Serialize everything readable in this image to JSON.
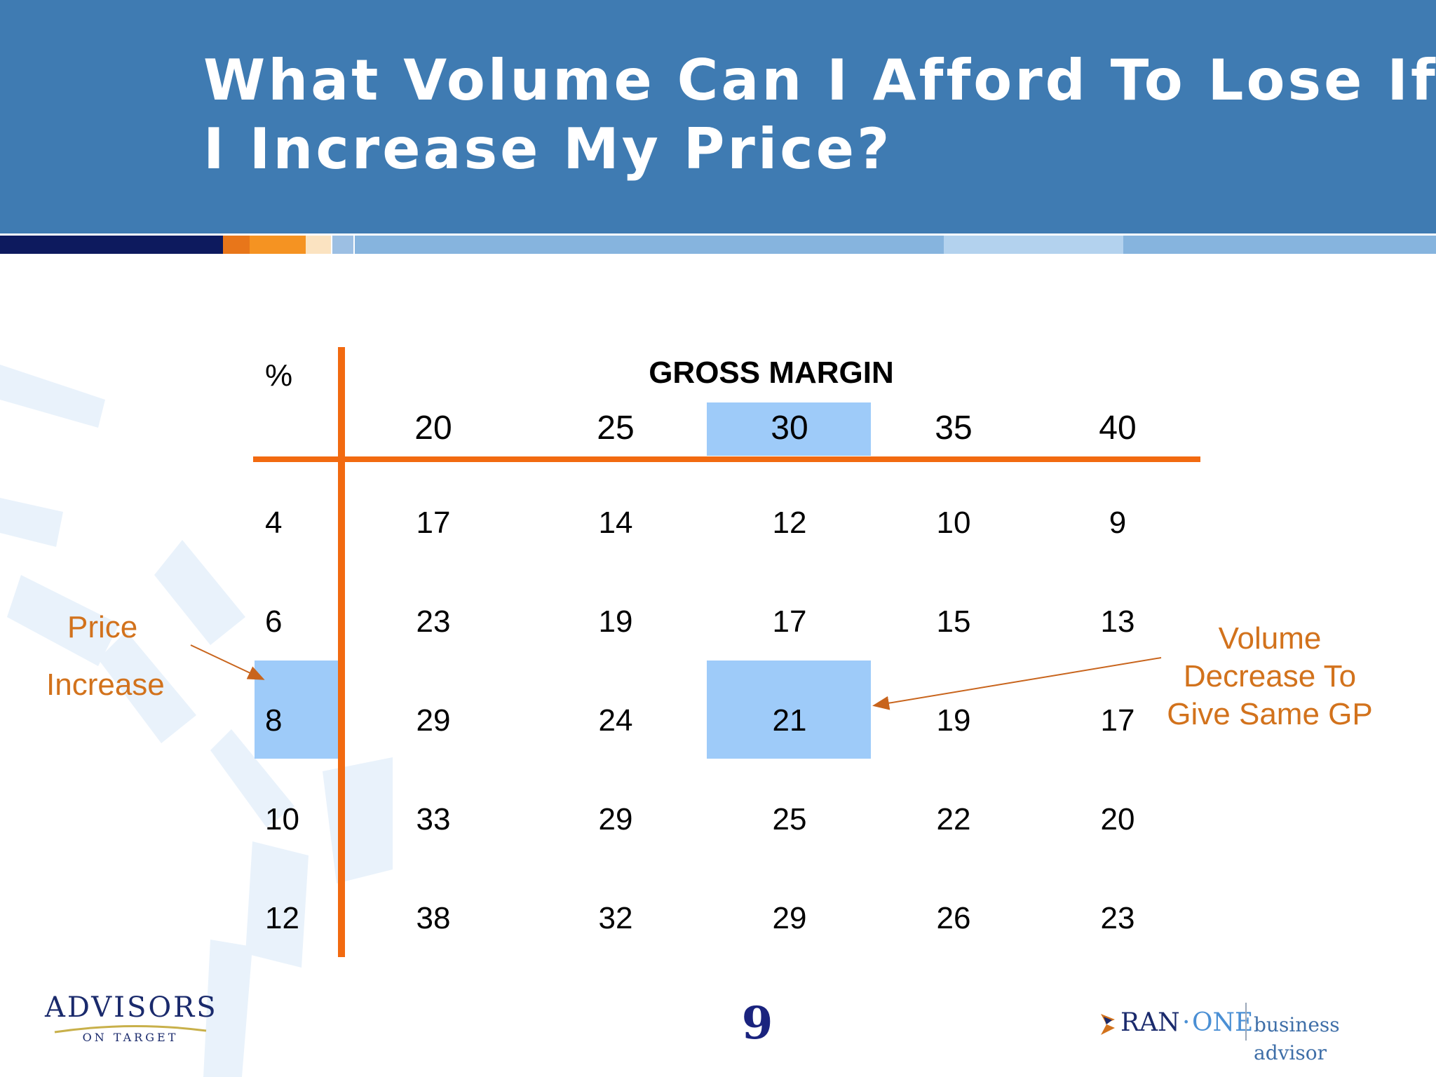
{
  "slide": {
    "title_lines": [
      "What Volume Can I Afford To Lose If",
      "I Increase My Price?"
    ],
    "page_number": "9"
  },
  "table": {
    "corner_label": "%",
    "column_group_label": "GROSS MARGIN",
    "columns": [
      "20",
      "25",
      "30",
      "35",
      "40"
    ],
    "rows": [
      {
        "label": "4",
        "values": [
          "17",
          "14",
          "12",
          "10",
          "9"
        ]
      },
      {
        "label": "6",
        "values": [
          "23",
          "19",
          "17",
          "15",
          "13"
        ]
      },
      {
        "label": "8",
        "values": [
          "29",
          "24",
          "21",
          "19",
          "17"
        ]
      },
      {
        "label": "10",
        "values": [
          "33",
          "29",
          "25",
          "22",
          "20"
        ]
      },
      {
        "label": "12",
        "values": [
          "38",
          "32",
          "29",
          "26",
          "23"
        ]
      }
    ],
    "highlighted_column": "30",
    "highlighted_row": "8",
    "highlighted_cell_value": "21"
  },
  "annotations": {
    "left": {
      "line1": "Price",
      "line2": "Increase"
    },
    "right": {
      "line1": "Volume",
      "line2": "Decrease To",
      "line3": "Give Same GP"
    }
  },
  "logos": {
    "left_main": "ADVISORS",
    "left_sub": "ON TARGET",
    "right_brand_a": "RAN",
    "right_dot": "·",
    "right_brand_b": "ONE",
    "right_tagline": "business advisor"
  },
  "colors": {
    "header_blue": "#3f7bb2",
    "grid_orange": "#f26a10",
    "annotation_orange": "#d2721c",
    "highlight_blue": "#9ecbf9"
  }
}
